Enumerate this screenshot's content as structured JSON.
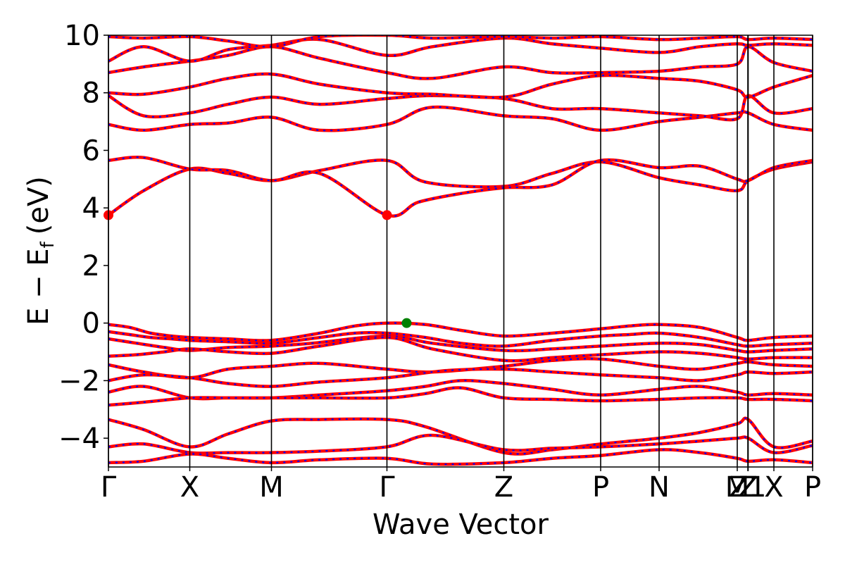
{
  "chart_data": {
    "type": "line",
    "title": "",
    "xlabel": "Wave Vector",
    "ylabel_main": "E − E",
    "ylabel_sub": "f",
    "ylabel_unit": "(eV)",
    "ylim": [
      -5,
      10
    ],
    "yticks": [
      {
        "value": 10,
        "label": "10"
      },
      {
        "value": 8,
        "label": "8"
      },
      {
        "value": 6,
        "label": "6"
      },
      {
        "value": 4,
        "label": "4"
      },
      {
        "value": 2,
        "label": "2"
      },
      {
        "value": 0,
        "label": "0"
      },
      {
        "value": -2,
        "label": "−2"
      },
      {
        "value": -4,
        "label": "−4"
      }
    ],
    "kpoints": [
      {
        "label": "Γ",
        "x": 0.0
      },
      {
        "label": "X",
        "x": 0.1155
      },
      {
        "label": "M",
        "x": 0.2315
      },
      {
        "label": "Γ",
        "x": 0.3955
      },
      {
        "label": "Z",
        "x": 0.5615
      },
      {
        "label": "P",
        "x": 0.699
      },
      {
        "label": "N",
        "x": 0.782
      },
      {
        "label": "M",
        "x": 0.893
      },
      {
        "label": "Z",
        "x": 0.9085
      },
      {
        "label": "Z1",
        "x": 0.908
      },
      {
        "label": "X",
        "x": 0.945
      },
      {
        "label": "P",
        "x": 1.0
      }
    ],
    "colors": {
      "band": "#ff0000",
      "band_overlay": "#0000ff",
      "cbm_marker": "#ff0000",
      "vbm_marker": "#008000",
      "kline": "#000000"
    },
    "markers": [
      {
        "name": "CBM",
        "x": 0.0,
        "y": 3.75,
        "color": "#ff0000"
      },
      {
        "name": "CBM",
        "x": 0.3955,
        "y": 3.75,
        "color": "#ff0000"
      },
      {
        "name": "VBM",
        "x": 0.4235,
        "y": 0.0,
        "color": "#008000"
      }
    ],
    "series": [
      {
        "kx": [
          0,
          0.03,
          0.06,
          0.09,
          0.1155,
          0.17,
          0.2315,
          0.3,
          0.35,
          0.3955,
          0.45,
          0.5,
          0.5615,
          0.63,
          0.699,
          0.74,
          0.782,
          0.84,
          0.893,
          0.9085,
          0.945,
          1.0
        ],
        "y": [
          -0.05,
          -0.15,
          -0.35,
          -0.45,
          -0.5,
          -0.55,
          -0.6,
          -0.35,
          -0.1,
          0.0,
          -0.05,
          -0.25,
          -0.45,
          -0.35,
          -0.2,
          -0.1,
          -0.05,
          -0.15,
          -0.5,
          -0.6,
          -0.5,
          -0.45
        ]
      },
      {
        "kx": [
          0,
          0.03,
          0.06,
          0.09,
          0.1155,
          0.17,
          0.2315,
          0.3,
          0.35,
          0.3955,
          0.45,
          0.5,
          0.5615,
          0.63,
          0.699,
          0.74,
          0.782,
          0.84,
          0.893,
          0.9085,
          0.945,
          1.0
        ],
        "y": [
          -0.3,
          -0.4,
          -0.5,
          -0.55,
          -0.6,
          -0.65,
          -0.7,
          -0.5,
          -0.35,
          -0.35,
          -0.5,
          -0.7,
          -0.8,
          -0.6,
          -0.45,
          -0.4,
          -0.35,
          -0.5,
          -0.75,
          -0.8,
          -0.75,
          -0.7
        ]
      },
      {
        "kx": [
          0,
          0.04,
          0.08,
          0.1155,
          0.17,
          0.2315,
          0.29,
          0.3955,
          0.46,
          0.5615,
          0.63,
          0.699,
          0.782,
          0.84,
          0.893,
          0.9085,
          0.945,
          1.0
        ],
        "y": [
          -0.55,
          -0.7,
          -0.85,
          -0.95,
          -0.85,
          -0.8,
          -0.7,
          -0.45,
          -0.7,
          -0.95,
          -0.9,
          -0.8,
          -0.7,
          -0.75,
          -0.95,
          -1.0,
          -0.95,
          -0.9
        ]
      },
      {
        "kx": [
          0,
          0.04,
          0.08,
          0.1155,
          0.17,
          0.2315,
          0.3,
          0.3955,
          0.46,
          0.5615,
          0.63,
          0.699,
          0.782,
          0.84,
          0.893,
          0.9085,
          0.945,
          1.0
        ],
        "y": [
          -1.15,
          -1.1,
          -1.0,
          -0.9,
          -1.0,
          -1.05,
          -0.8,
          -0.5,
          -0.9,
          -1.3,
          -1.2,
          -1.1,
          -1.0,
          -1.05,
          -1.2,
          -1.25,
          -1.2,
          -1.2
        ]
      },
      {
        "kx": [
          0,
          0.05,
          0.1155,
          0.17,
          0.2315,
          0.3,
          0.3955,
          0.46,
          0.5615,
          0.63,
          0.699,
          0.782,
          0.84,
          0.893,
          0.9085,
          0.945,
          1.0
        ],
        "y": [
          -1.45,
          -1.7,
          -1.9,
          -1.6,
          -1.5,
          -1.4,
          -1.6,
          -1.7,
          -1.5,
          -1.3,
          -1.25,
          -1.5,
          -1.6,
          -1.4,
          -1.35,
          -1.45,
          -1.5
        ]
      },
      {
        "kx": [
          0,
          0.05,
          0.1155,
          0.17,
          0.2315,
          0.3,
          0.3955,
          0.48,
          0.5615,
          0.63,
          0.699,
          0.782,
          0.84,
          0.893,
          0.9085,
          0.945,
          1.0
        ],
        "y": [
          -2.0,
          -1.8,
          -1.9,
          -2.1,
          -2.2,
          -2.05,
          -1.9,
          -1.65,
          -1.6,
          -1.7,
          -1.8,
          -1.9,
          -2.0,
          -1.8,
          -1.7,
          -1.75,
          -1.7
        ]
      },
      {
        "kx": [
          0,
          0.05,
          0.1155,
          0.17,
          0.2315,
          0.3,
          0.3955,
          0.45,
          0.5,
          0.5615,
          0.63,
          0.699,
          0.782,
          0.84,
          0.893,
          0.9085,
          0.945,
          1.0
        ],
        "y": [
          -2.4,
          -2.2,
          -2.6,
          -2.6,
          -2.6,
          -2.5,
          -2.35,
          -2.2,
          -2.0,
          -2.1,
          -2.3,
          -2.5,
          -2.3,
          -2.2,
          -2.4,
          -2.5,
          -2.45,
          -2.5
        ]
      },
      {
        "kx": [
          0,
          0.05,
          0.1155,
          0.17,
          0.2315,
          0.3,
          0.3955,
          0.45,
          0.5,
          0.5615,
          0.63,
          0.699,
          0.782,
          0.84,
          0.893,
          0.9085,
          0.945,
          1.0
        ],
        "y": [
          -2.85,
          -2.75,
          -2.6,
          -2.6,
          -2.6,
          -2.6,
          -2.6,
          -2.45,
          -2.25,
          -2.6,
          -2.65,
          -2.7,
          -2.65,
          -2.6,
          -2.6,
          -2.65,
          -2.65,
          -2.7
        ]
      },
      {
        "kx": [
          0,
          0.05,
          0.1155,
          0.17,
          0.2315,
          0.3,
          0.3955,
          0.45,
          0.5615,
          0.63,
          0.699,
          0.782,
          0.84,
          0.893,
          0.9085,
          0.945,
          1.0
        ],
        "y": [
          -3.35,
          -3.7,
          -4.3,
          -3.85,
          -3.4,
          -3.35,
          -3.35,
          -3.6,
          -4.5,
          -4.4,
          -4.2,
          -4.0,
          -3.8,
          -3.5,
          -3.35,
          -4.3,
          -4.1
        ]
      },
      {
        "kx": [
          0,
          0.05,
          0.1155,
          0.17,
          0.2315,
          0.3,
          0.3955,
          0.46,
          0.5615,
          0.63,
          0.699,
          0.782,
          0.84,
          0.893,
          0.9085,
          0.945,
          1.0
        ],
        "y": [
          -4.3,
          -4.2,
          -4.5,
          -4.5,
          -4.5,
          -4.45,
          -4.3,
          -3.9,
          -4.4,
          -4.35,
          -4.3,
          -4.2,
          -4.1,
          -4.0,
          -4.0,
          -4.5,
          -4.25
        ]
      },
      {
        "kx": [
          0,
          0.05,
          0.1155,
          0.17,
          0.2315,
          0.3,
          0.3955,
          0.46,
          0.5615,
          0.63,
          0.699,
          0.782,
          0.84,
          0.893,
          0.9085,
          0.945,
          1.0
        ],
        "y": [
          -4.85,
          -4.8,
          -4.55,
          -4.7,
          -4.85,
          -4.75,
          -4.7,
          -4.9,
          -4.85,
          -4.7,
          -4.6,
          -4.4,
          -4.5,
          -4.7,
          -4.8,
          -4.75,
          -4.85
        ]
      },
      {
        "kx": [
          0,
          0.05,
          0.1155,
          0.17,
          0.2315,
          0.3,
          0.3955,
          0.45,
          0.5615,
          0.63,
          0.699,
          0.782,
          0.84,
          0.893,
          0.9085,
          0.945,
          1.0
        ],
        "y": [
          3.75,
          4.6,
          5.35,
          5.2,
          4.95,
          5.3,
          5.65,
          4.9,
          4.75,
          5.2,
          5.6,
          5.05,
          4.8,
          4.6,
          4.95,
          5.35,
          5.6
        ]
      },
      {
        "kx": [
          0,
          0.05,
          0.1155,
          0.17,
          0.2315,
          0.3,
          0.3955,
          0.44,
          0.5,
          0.5615,
          0.63,
          0.699,
          0.782,
          0.84,
          0.893,
          0.9085,
          0.945,
          1.0
        ],
        "y": [
          5.65,
          5.75,
          5.35,
          5.3,
          4.95,
          5.2,
          3.75,
          4.2,
          4.5,
          4.7,
          4.8,
          5.65,
          5.4,
          5.45,
          5.0,
          4.95,
          5.4,
          5.65
        ]
      },
      {
        "kx": [
          0,
          0.05,
          0.1155,
          0.17,
          0.2315,
          0.3,
          0.3955,
          0.46,
          0.5615,
          0.63,
          0.699,
          0.782,
          0.84,
          0.893,
          0.9085,
          0.945,
          1.0
        ],
        "y": [
          6.9,
          6.7,
          6.9,
          6.95,
          7.15,
          6.7,
          6.9,
          7.5,
          7.2,
          7.1,
          6.7,
          7.0,
          7.15,
          7.3,
          7.3,
          6.9,
          6.7
        ]
      },
      {
        "kx": [
          0,
          0.05,
          0.1155,
          0.17,
          0.2315,
          0.3,
          0.3955,
          0.46,
          0.5615,
          0.63,
          0.699,
          0.782,
          0.84,
          0.893,
          0.9085,
          0.945,
          1.0
        ],
        "y": [
          7.9,
          7.2,
          7.3,
          7.6,
          7.85,
          7.6,
          7.8,
          7.9,
          7.8,
          7.45,
          7.45,
          7.3,
          7.2,
          7.1,
          7.9,
          7.3,
          7.45
        ]
      },
      {
        "kx": [
          0,
          0.05,
          0.1155,
          0.17,
          0.2315,
          0.3,
          0.3955,
          0.46,
          0.5615,
          0.63,
          0.699,
          0.782,
          0.84,
          0.893,
          0.9085,
          0.945,
          1.0
        ],
        "y": [
          8.0,
          7.95,
          8.2,
          8.5,
          8.65,
          8.3,
          8.0,
          7.95,
          7.85,
          8.3,
          8.6,
          8.5,
          8.4,
          8.1,
          7.85,
          8.2,
          8.6
        ]
      },
      {
        "kx": [
          0,
          0.05,
          0.1155,
          0.17,
          0.2315,
          0.3,
          0.3955,
          0.46,
          0.5615,
          0.63,
          0.699,
          0.782,
          0.84,
          0.893,
          0.9085,
          0.945,
          1.0
        ],
        "y": [
          8.7,
          8.9,
          9.1,
          9.3,
          9.6,
          9.2,
          8.7,
          8.5,
          8.9,
          8.7,
          8.7,
          8.75,
          8.9,
          9.0,
          9.6,
          9.05,
          8.75
        ]
      },
      {
        "kx": [
          0,
          0.05,
          0.1155,
          0.17,
          0.2315,
          0.3,
          0.3955,
          0.46,
          0.5615,
          0.63,
          0.699,
          0.782,
          0.84,
          0.893,
          0.9085,
          0.945,
          1.0
        ],
        "y": [
          9.1,
          9.6,
          9.1,
          9.5,
          9.65,
          9.85,
          9.3,
          9.6,
          9.9,
          9.7,
          9.55,
          9.4,
          9.6,
          9.7,
          9.65,
          9.7,
          9.65
        ]
      },
      {
        "kx": [
          0,
          0.05,
          0.1155,
          0.17,
          0.2315,
          0.3,
          0.3955,
          0.46,
          0.5615,
          0.63,
          0.699,
          0.782,
          0.84,
          0.893,
          0.9085,
          0.945,
          1.0
        ],
        "y": [
          9.95,
          9.9,
          9.95,
          9.8,
          9.6,
          9.95,
          10.0,
          9.9,
          9.95,
          9.9,
          9.95,
          9.85,
          9.9,
          9.95,
          9.85,
          9.9,
          9.85
        ]
      }
    ]
  }
}
